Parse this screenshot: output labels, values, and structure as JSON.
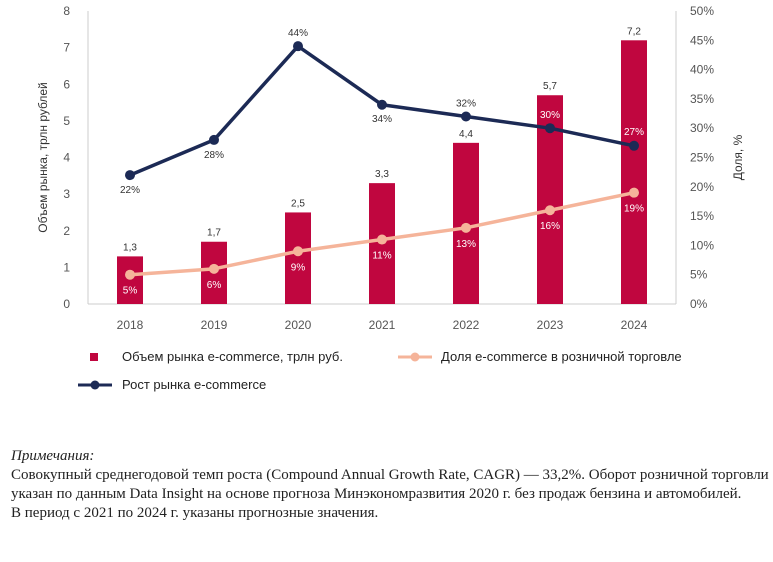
{
  "chart_data": {
    "type": "bar+line",
    "categories": [
      "2018",
      "2019",
      "2020",
      "2021",
      "2022",
      "2023",
      "2024"
    ],
    "y_left": {
      "label": "Объем рынка, трлн рублей",
      "min": 0,
      "max": 8,
      "ticks": [
        "0",
        "1",
        "2",
        "3",
        "4",
        "5",
        "6",
        "7",
        "8"
      ]
    },
    "y_right": {
      "label": "Доля, %",
      "min": 0,
      "max": 50,
      "ticks": [
        "0%",
        "5%",
        "10%",
        "15%",
        "20%",
        "25%",
        "30%",
        "35%",
        "40%",
        "45%",
        "50%"
      ]
    },
    "series": [
      {
        "name": "Объем рынка e-commerce, трлн руб.",
        "kind": "bar",
        "axis": "left",
        "color": "#c0063f",
        "values": [
          1.3,
          1.7,
          2.5,
          3.3,
          4.4,
          5.7,
          7.2
        ],
        "labels": [
          "1,3",
          "1,7",
          "2,5",
          "3,3",
          "4,4",
          "5,7",
          "7,2"
        ]
      },
      {
        "name": "Доля e-commerce в розничной торговле",
        "kind": "line",
        "axis": "right",
        "color": "#f5b49a",
        "values": [
          5,
          6,
          9,
          11,
          13,
          16,
          19
        ],
        "labels": [
          "5%",
          "6%",
          "9%",
          "11%",
          "13%",
          "16%",
          "19%"
        ]
      },
      {
        "name": "Рост рынка e-commerce",
        "kind": "line",
        "axis": "right",
        "color": "#1c2a55",
        "values": [
          22,
          28,
          44,
          34,
          32,
          30,
          27
        ],
        "labels": [
          "22%",
          "28%",
          "44%",
          "34%",
          "32%",
          "30%",
          "27%"
        ]
      }
    ],
    "grid": false
  },
  "notes": {
    "title": "Примечания:",
    "paragraphs": [
      "Совокупный среднегодовой темп роста (Compound Annual Growth Rate, CAGR) — 33,2%. Оборот розничной торговли указан по данным Data Insight на основе прогноза Минэкономразвития 2020 г. без продаж бензина и автомобилей.",
      "В период с 2021 по 2024 г. указаны прогнозные значения."
    ]
  }
}
